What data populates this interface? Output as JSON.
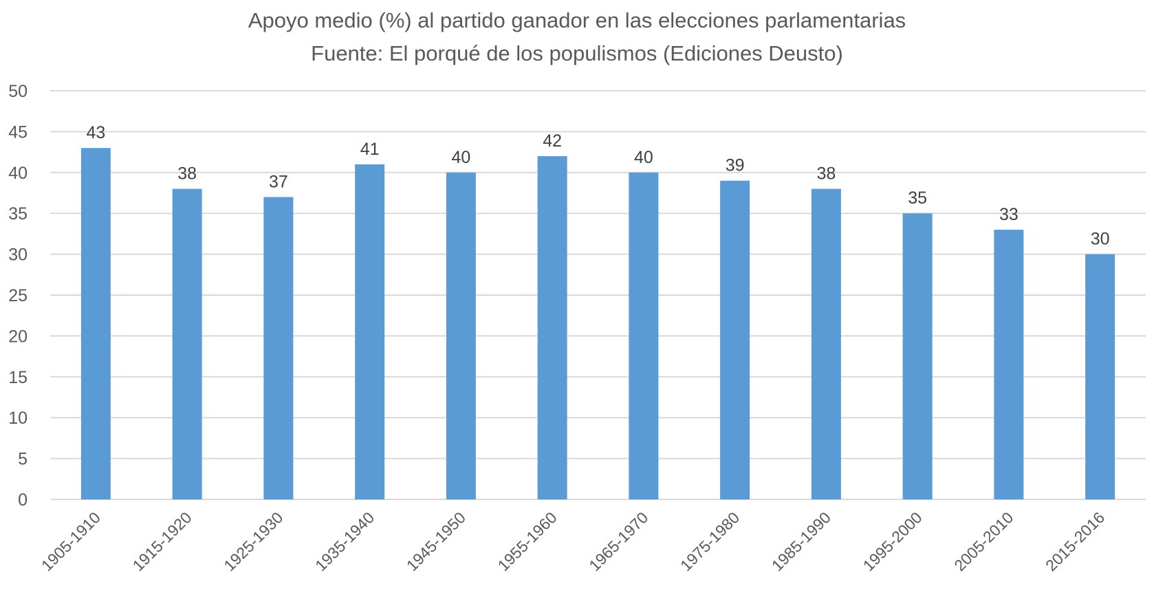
{
  "chart_data": {
    "type": "bar",
    "title": "Apoyo medio (%) al partido ganador en las elecciones parlamentarias",
    "subtitle": "Fuente: El porqué de los populismos (Ediciones Deusto)",
    "categories": [
      "1905-1910",
      "1915-1920",
      "1925-1930",
      "1935-1940",
      "1945-1950",
      "1955-1960",
      "1965-1970",
      "1975-1980",
      "1985-1990",
      "1995-2000",
      "2005-2010",
      "2015-2016"
    ],
    "values": [
      43,
      38,
      37,
      41,
      40,
      42,
      40,
      39,
      38,
      35,
      33,
      30
    ],
    "ylim": [
      0,
      50
    ],
    "yticks": [
      0,
      5,
      10,
      15,
      20,
      25,
      30,
      35,
      40,
      45,
      50
    ],
    "grid": true,
    "data_labels": true,
    "bar_color": "#5B9BD5",
    "grid_color": "#D9D9D9"
  }
}
